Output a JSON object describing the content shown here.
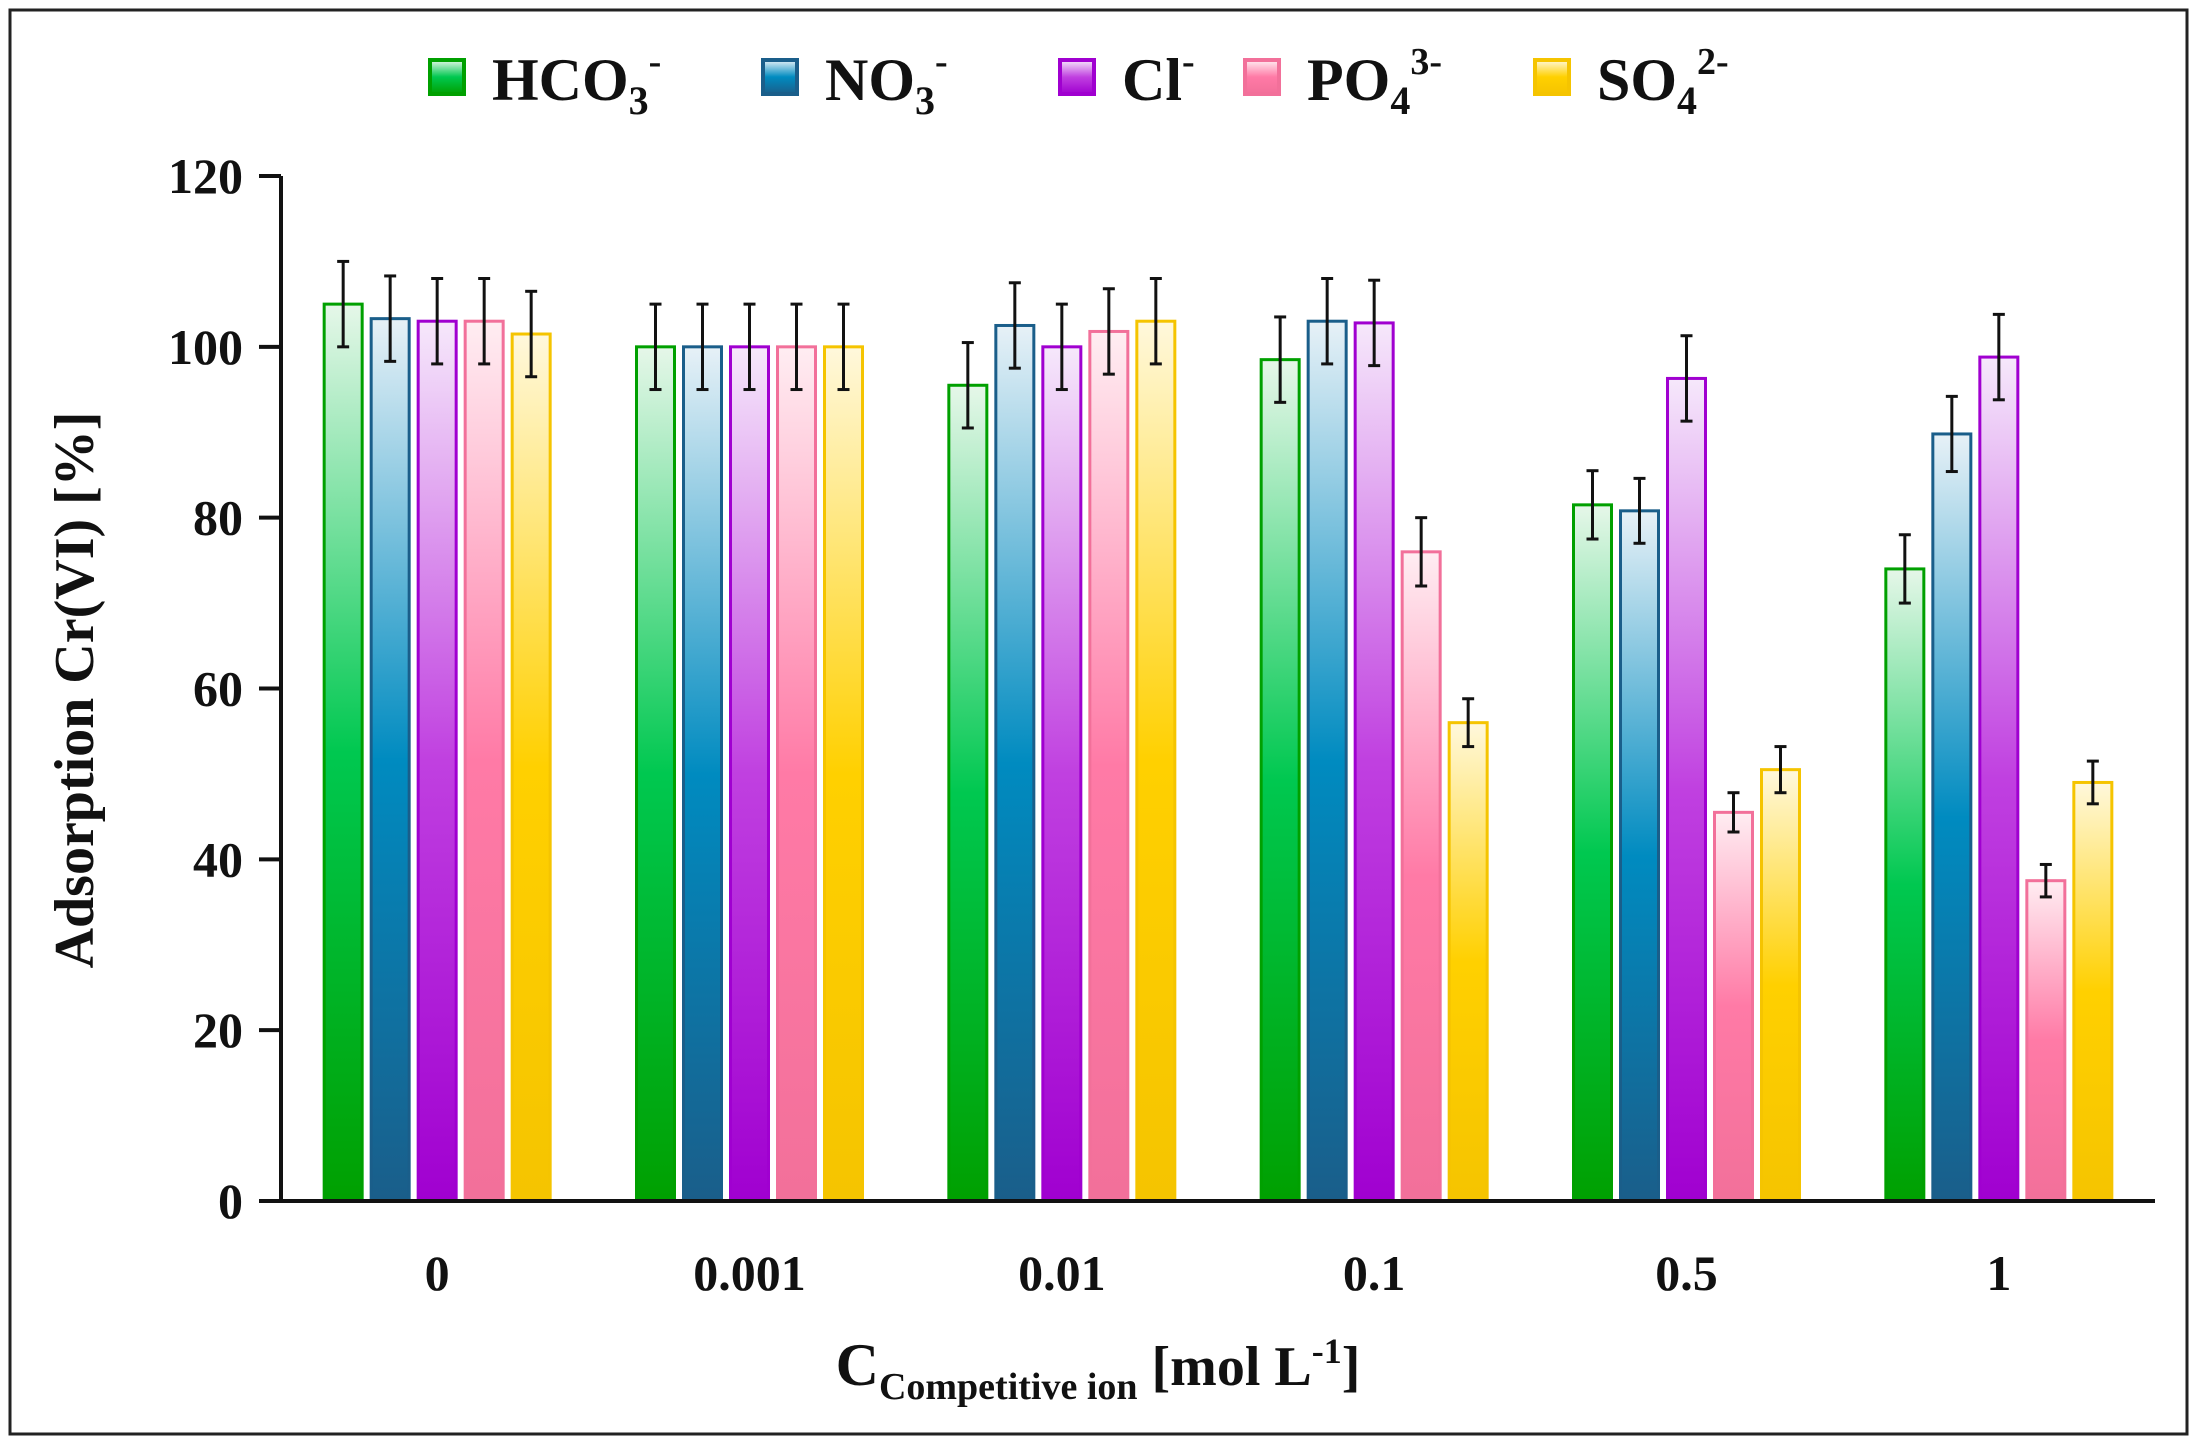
{
  "chart_data": {
    "type": "bar",
    "title": "",
    "xlabel": {
      "main": "C",
      "sub": "Competitive ion",
      "unit_open": " [mol L",
      "unit_sup": "-1",
      "unit_close": "]"
    },
    "ylabel": "Adsorption Cr(VI) [%]",
    "ylim": [
      0,
      120
    ],
    "yticks": [
      0,
      20,
      40,
      60,
      80,
      100,
      120
    ],
    "categories": [
      "0",
      "0.001",
      "0.01",
      "0.1",
      "0.5",
      "1"
    ],
    "legend_position": "top",
    "grid": false,
    "series": [
      {
        "name": "HCO3-",
        "label": {
          "base": "HCO",
          "sub": "3",
          "sup": "-"
        },
        "color": "#00A000",
        "color_light": "#E6F7E9",
        "color_mid": "#00C850",
        "values": [
          105,
          100,
          95.5,
          98.5,
          81.5,
          74
        ],
        "errors": [
          5,
          5,
          5,
          5,
          4,
          4
        ]
      },
      {
        "name": "NO3-",
        "label": {
          "base": "NO",
          "sub": "3",
          "sup": "-"
        },
        "color": "#1A5E8A",
        "color_light": "#E7F1F7",
        "color_mid": "#008BC0",
        "values": [
          103.3,
          100,
          102.5,
          103,
          80.8,
          89.8
        ],
        "errors": [
          5,
          5,
          5,
          5,
          3.8,
          4.4
        ]
      },
      {
        "name": "Cl-",
        "label": {
          "base": "Cl",
          "sub": "",
          "sup": "-"
        },
        "color": "#A000D0",
        "color_light": "#F6E8FB",
        "color_mid": "#C040E0",
        "values": [
          103,
          100,
          100,
          102.8,
          96.3,
          98.8
        ],
        "errors": [
          5,
          5,
          5,
          5,
          5,
          5
        ]
      },
      {
        "name": "PO43-",
        "label": {
          "base": "PO",
          "sub": "4",
          "sup": "3-"
        },
        "color": "#F2709A",
        "color_light": "#FFEDF2",
        "color_mid": "#FF7AA6",
        "values": [
          103,
          100,
          101.8,
          76,
          45.5,
          37.5
        ],
        "errors": [
          5,
          5,
          5,
          4,
          2.3,
          1.9
        ]
      },
      {
        "name": "SO42-",
        "label": {
          "base": "SO",
          "sub": "4",
          "sup": "2-"
        },
        "color": "#F5C400",
        "color_light": "#FFF8DC",
        "color_mid": "#FFD000",
        "values": [
          101.5,
          100,
          103,
          56,
          50.5,
          49
        ],
        "errors": [
          5,
          5,
          5,
          2.8,
          2.7,
          2.5
        ]
      }
    ]
  }
}
